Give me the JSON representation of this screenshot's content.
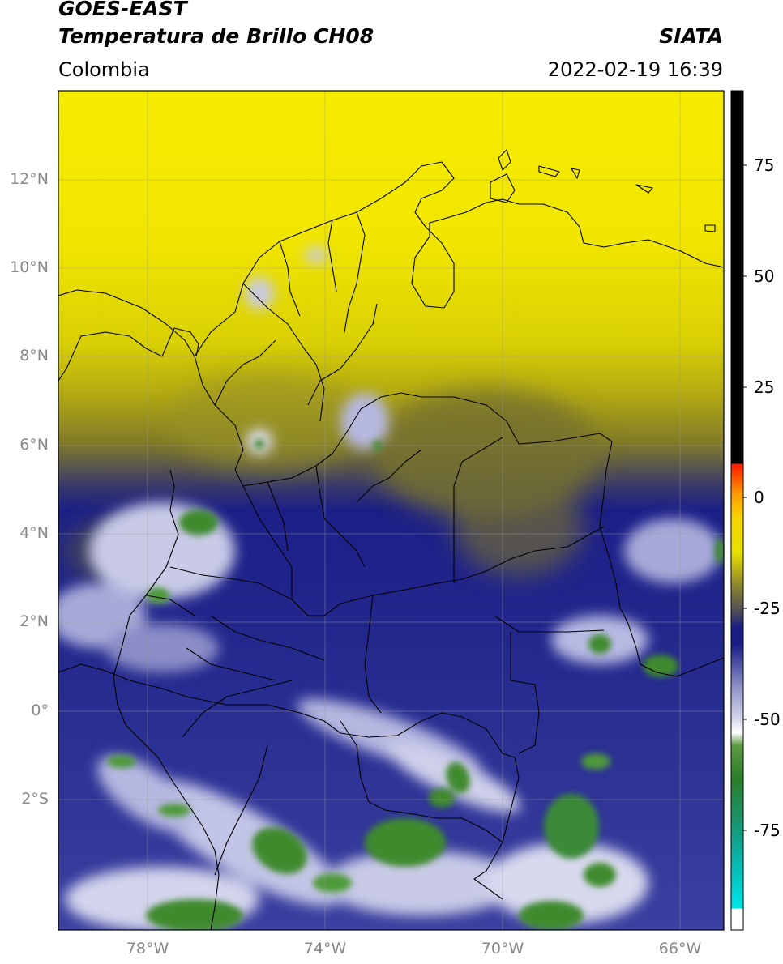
{
  "header": {
    "title_line1": "GOES-EAST",
    "title_line2": "Temperatura de Brillo CH08",
    "brand": "SIATA",
    "region": "Colombia",
    "timestamp": "2022-02-19 16:39"
  },
  "map": {
    "lat_labels": [
      "12°N",
      "10°N",
      "8°N",
      "6°N",
      "4°N",
      "2°N",
      "0°",
      "2°S"
    ],
    "lon_labels": [
      "78°W",
      "74°W",
      "70°W",
      "66°W"
    ],
    "colors": {
      "warm_yellow": "#f2e800",
      "olive": "#8f8a1a",
      "navy": "#1c1f86",
      "lavender": "#8c90c8",
      "white": "#f4f4f4",
      "green": "#3f8a2f",
      "border": "#000000"
    }
  },
  "colorbar": {
    "tick_labels": [
      "75",
      "50",
      "25",
      "0",
      "-25",
      "-50",
      "-75"
    ],
    "colors": [
      "#ffffff",
      "#00e5e5",
      "#0a9e8a",
      "#2f7a24",
      "#6da34a",
      "#ffffff",
      "#8d90c6",
      "#1b1d87",
      "#6f6b35",
      "#e7e000",
      "#ff9a00",
      "#ff1800",
      "#000000"
    ]
  }
}
